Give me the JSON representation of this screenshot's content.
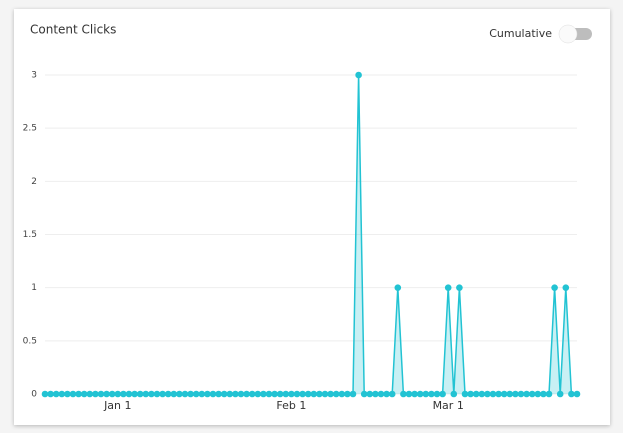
{
  "chart_data": {
    "type": "line",
    "title": "Content Clicks",
    "toggle_label": "Cumulative",
    "toggle_on": false,
    "categories": [
      null,
      null,
      null,
      null,
      null,
      null,
      null,
      null,
      null,
      null,
      null,
      null,
      null,
      "Jan 1",
      null,
      null,
      null,
      null,
      null,
      null,
      null,
      null,
      null,
      null,
      null,
      null,
      null,
      null,
      null,
      null,
      null,
      null,
      null,
      null,
      null,
      null,
      null,
      null,
      null,
      null,
      null,
      null,
      null,
      null,
      "Feb 1",
      null,
      null,
      null,
      null,
      null,
      null,
      null,
      null,
      null,
      null,
      null,
      null,
      null,
      null,
      null,
      null,
      null,
      null,
      null,
      null,
      null,
      null,
      null,
      null,
      null,
      null,
      null,
      "Mar 1",
      null,
      null,
      null,
      null,
      null,
      null,
      null,
      null,
      null,
      null,
      null,
      null,
      null,
      null,
      null,
      null,
      null,
      null,
      null,
      null,
      null,
      null,
      null
    ],
    "values": [
      0,
      0,
      0,
      0,
      0,
      0,
      0,
      0,
      0,
      0,
      0,
      0,
      0,
      0,
      0,
      0,
      0,
      0,
      0,
      0,
      0,
      0,
      0,
      0,
      0,
      0,
      0,
      0,
      0,
      0,
      0,
      0,
      0,
      0,
      0,
      0,
      0,
      0,
      0,
      0,
      0,
      0,
      0,
      0,
      0,
      0,
      0,
      0,
      0,
      0,
      0,
      0,
      0,
      0,
      0,
      0,
      3,
      0,
      0,
      0,
      0,
      0,
      0,
      1,
      0,
      0,
      0,
      0,
      0,
      0,
      0,
      0,
      1,
      0,
      1,
      0,
      0,
      0,
      0,
      0,
      0,
      0,
      0,
      0,
      0,
      0,
      0,
      0,
      0,
      0,
      0,
      1,
      0,
      1,
      0,
      0
    ],
    "color": "#22c3d3",
    "area": true,
    "ylim": [
      0,
      3
    ],
    "yticks": [
      0,
      0.5,
      1,
      1.5,
      2,
      2.5,
      3
    ],
    "grid": true
  }
}
